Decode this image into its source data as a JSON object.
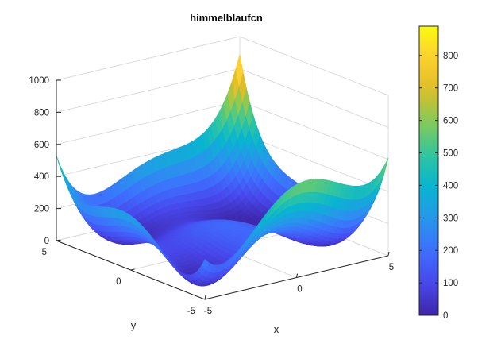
{
  "chart_data": {
    "type": "surface",
    "title": "himmelblaufcn",
    "function": "(x^2 + y - 11)^2 + (x + y^2 - 7)^2",
    "xlabel": "x",
    "ylabel": "y",
    "zlabel": "",
    "xlim": [
      -5,
      5
    ],
    "ylim": [
      -5,
      5
    ],
    "zlim": [
      0,
      1000
    ],
    "xticks": [
      "-5",
      "0",
      "5"
    ],
    "yticks": [
      "-5",
      "0",
      "5"
    ],
    "zticks": [
      "0",
      "200",
      "400",
      "600",
      "800",
      "1000"
    ],
    "grid": true,
    "colormap": "parula",
    "colorbar": {
      "position": "right",
      "range": [
        0,
        890
      ],
      "ticks": [
        "0",
        "100",
        "200",
        "300",
        "400",
        "500",
        "600",
        "700",
        "800"
      ]
    }
  }
}
